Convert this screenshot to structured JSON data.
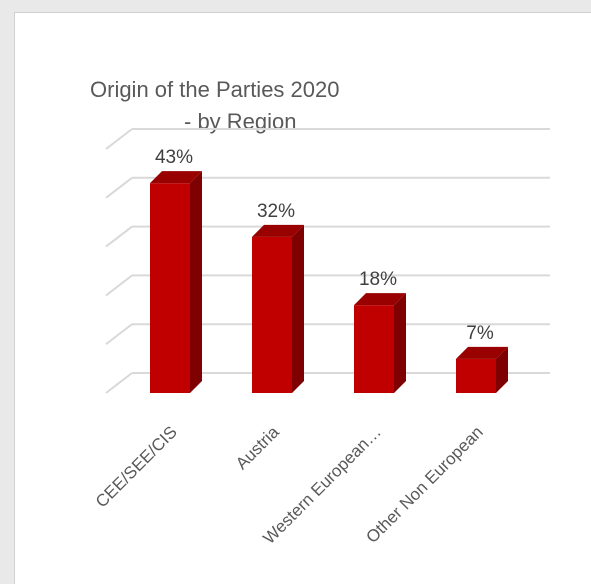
{
  "chart_data": {
    "type": "bar",
    "title_line1": "Origin of the Parties 2020",
    "title_line2": "- by Region",
    "categories": [
      "CEE/SEE/CIS",
      "Austria",
      "Western European…",
      "Other Non European"
    ],
    "values": [
      43,
      32,
      18,
      7
    ],
    "data_labels": [
      "43%",
      "32%",
      "18%",
      "7%"
    ],
    "unit": "%",
    "ylim": [
      0,
      50
    ],
    "grid": true,
    "legend": "none",
    "colors": {
      "bar_front": "#c00000",
      "bar_side": "#7f0000",
      "bar_top": "#990000",
      "grid": "#d9d9d9"
    }
  }
}
